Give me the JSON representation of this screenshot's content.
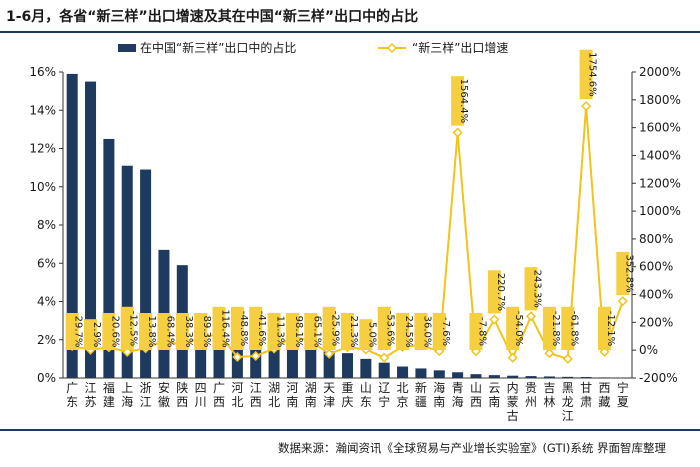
{
  "title": "1-6月，各省“新三样”出口增速及其在中国“新三样”出口中的占比",
  "source": "数据来源：瀚闻资讯《全球贸易与产业增长实验室》(GTI)系统  界面智库整理",
  "chart_data": {
    "type": "bar+line",
    "categories": [
      "广东",
      "江苏",
      "福建",
      "上海",
      "浙江",
      "安徽",
      "陕西",
      "四川",
      "广西",
      "河北",
      "江西",
      "湖北",
      "河南",
      "湖南",
      "天津",
      "重庆",
      "山东",
      "辽宁",
      "北京",
      "新疆",
      "海南",
      "青海",
      "山西",
      "云南",
      "内蒙古",
      "贵州",
      "吉林",
      "黑龙江",
      "甘肃",
      "西藏",
      "宁夏"
    ],
    "series": [
      {
        "name": "在中国“新三样”出口中的占比",
        "axis": "left",
        "color": "#1f3a5f",
        "values": [
          15.9,
          15.5,
          12.5,
          11.1,
          10.9,
          6.7,
          5.9,
          2.4,
          2.3,
          2.2,
          2.2,
          2.1,
          1.7,
          1.6,
          1.4,
          1.3,
          1.0,
          0.8,
          0.6,
          0.5,
          0.4,
          0.3,
          0.2,
          0.15,
          0.12,
          0.1,
          0.08,
          0.06,
          0.05,
          0.03,
          0.02
        ]
      },
      {
        "name": "“新三样”出口增速",
        "axis": "right",
        "color": "#f0c419",
        "values": [
          29.7,
          2.9,
          20.6,
          -12.5,
          13.8,
          68.4,
          38.3,
          89.3,
          116.4,
          -48.8,
          -41.6,
          11.3,
          98.1,
          65.1,
          -25.9,
          21.3,
          5.0,
          -53.6,
          24.5,
          36.0,
          -7.6,
          1564.4,
          -7.8,
          220.7,
          -54.0,
          243.3,
          -21.8,
          -61.8,
          1754.6,
          -12.1,
          352.8
        ],
        "labels": [
          "29.7%",
          "2.9%",
          "20.6%",
          "-12.5%",
          "13.8%",
          "68.4%",
          "38.3%",
          "89.3%",
          "116.4%",
          "-48.8%",
          "-41.6%",
          "11.3%",
          "98.1%",
          "65.1%",
          "-25.9%",
          "21.3%",
          "5.0%",
          "-53.6%",
          "24.5%",
          "36.0%",
          "-7.6%",
          "1564.4%",
          "-7.8%",
          "220.7%",
          "-54.0%",
          "243.3%",
          "-21.8%",
          "-61.8%",
          "1754.6%",
          "-12.1%",
          "352.8%"
        ]
      }
    ],
    "left_axis": {
      "min": 0,
      "max": 16,
      "step": 2,
      "ticks": [
        "0%",
        "2%",
        "4%",
        "6%",
        "8%",
        "10%",
        "12%",
        "14%",
        "16%"
      ]
    },
    "right_axis": {
      "min": -200,
      "max": 2000,
      "step": 200,
      "ticks": [
        "-200%",
        "0%",
        "200%",
        "400%",
        "600%",
        "800%",
        "1000%",
        "1200%",
        "1400%",
        "1600%",
        "1800%",
        "2000%"
      ]
    },
    "legend_position": "top"
  }
}
